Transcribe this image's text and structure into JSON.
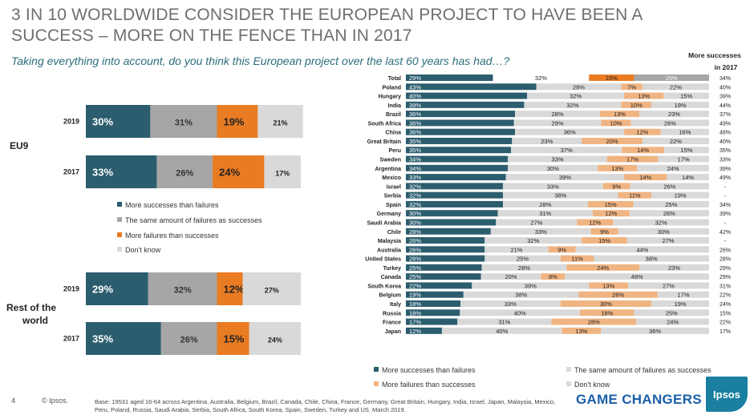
{
  "title": "3 IN 10 WORLDWIDE CONSIDER THE EUROPEAN PROJECT TO HAVE BEEN A SUCCESS – MORE ON THE FENCE THAN IN 2017",
  "subtitle": "Taking everything into account, do you think this European project over the last 60 years has had…?",
  "colors": {
    "success": "#2b5d6e",
    "same": "#a6a6a6",
    "failure": "#e97b22",
    "dont_know": "#d9d9d9",
    "failure_light": "#f0b482",
    "title": "#6e6e6e",
    "subtitle": "#2b6d7c"
  },
  "left_legend": [
    "More successes than failures",
    "The same amount of failures as successes",
    "More failures than successes",
    "Don't know"
  ],
  "bottom_legend": [
    "More successes than failures",
    "The same amount of failures as successes",
    "More failures than successes",
    "Don't know"
  ],
  "right_header": "More successes in 2017",
  "footer": {
    "page": "4",
    "copyright": "© Ipsos.",
    "base": "Base: 19531 aged 16-64 across Argentina, Australia, Belgium, Brazil, Canada, Chile, China, France, Germany, Great Britain, Hungary, India, Israel, Japan, Malaysia, Mexico, Peru, Poland, Russia, Saudi Arabia, Serbia, South Africa, South Korea, Spain, Sweden, Turkey and US. March 2019.",
    "brand": "GAME CHANGERS",
    "logo": "Ipsos"
  },
  "chart_data": [
    {
      "type": "bar",
      "stacked": true,
      "orientation": "horizontal",
      "groups": [
        {
          "label": "EU9",
          "rows": [
            {
              "year": "2019",
              "values": [
                30,
                31,
                19,
                21
              ]
            },
            {
              "year": "2017",
              "values": [
                33,
                26,
                24,
                17
              ]
            }
          ]
        },
        {
          "label": "Rest of the world",
          "rows": [
            {
              "year": "2019",
              "values": [
                29,
                32,
                12,
                27
              ]
            },
            {
              "year": "2017",
              "values": [
                35,
                26,
                15,
                24
              ]
            }
          ]
        }
      ],
      "series": [
        "More successes than failures",
        "The same amount of failures as successes",
        "More failures than successes",
        "Don't know"
      ]
    },
    {
      "type": "bar",
      "stacked": true,
      "orientation": "horizontal",
      "series": [
        "More successes than failures",
        "The same amount of failures as successes",
        "More failures than successes",
        "Don't know"
      ],
      "rows": [
        {
          "country": "Total",
          "values": [
            29,
            32,
            15,
            25
          ],
          "y2017": "34%"
        },
        {
          "country": "Poland",
          "values": [
            43,
            28,
            7,
            22
          ],
          "y2017": "40%"
        },
        {
          "country": "Hungary",
          "values": [
            40,
            32,
            13,
            15
          ],
          "y2017": "39%"
        },
        {
          "country": "India",
          "values": [
            39,
            32,
            10,
            19
          ],
          "y2017": "44%"
        },
        {
          "country": "Brazil",
          "values": [
            36,
            28,
            13,
            23
          ],
          "y2017": "37%"
        },
        {
          "country": "South Africa",
          "values": [
            36,
            29,
            10,
            26
          ],
          "y2017": "49%"
        },
        {
          "country": "China",
          "values": [
            36,
            36,
            12,
            16
          ],
          "y2017": "48%"
        },
        {
          "country": "Great Britain",
          "values": [
            35,
            23,
            20,
            22
          ],
          "y2017": "40%"
        },
        {
          "country": "Peru",
          "values": [
            35,
            37,
            14,
            15
          ],
          "y2017": "35%"
        },
        {
          "country": "Sweden",
          "values": [
            34,
            33,
            17,
            17
          ],
          "y2017": "33%"
        },
        {
          "country": "Argentina",
          "values": [
            34,
            30,
            13,
            24
          ],
          "y2017": "39%"
        },
        {
          "country": "Mexico",
          "values": [
            33,
            39,
            14,
            14
          ],
          "y2017": "49%"
        },
        {
          "country": "Israel",
          "values": [
            32,
            33,
            9,
            26
          ],
          "y2017": "-"
        },
        {
          "country": "Serbia",
          "values": [
            32,
            38,
            11,
            19
          ],
          "y2017": "-"
        },
        {
          "country": "Spain",
          "values": [
            32,
            28,
            15,
            25
          ],
          "y2017": "34%"
        },
        {
          "country": "Germany",
          "values": [
            30,
            31,
            12,
            26
          ],
          "y2017": "39%"
        },
        {
          "country": "Saudi Arabia",
          "values": [
            30,
            27,
            12,
            32
          ],
          "y2017": "-"
        },
        {
          "country": "Chile",
          "values": [
            28,
            33,
            9,
            30
          ],
          "y2017": "42%"
        },
        {
          "country": "Malaysia",
          "values": [
            26,
            32,
            15,
            27
          ],
          "y2017": "-"
        },
        {
          "country": "Australia",
          "values": [
            26,
            21,
            9,
            44
          ],
          "y2017": "26%"
        },
        {
          "country": "United States",
          "values": [
            26,
            25,
            11,
            38
          ],
          "y2017": "28%"
        },
        {
          "country": "Turkey",
          "values": [
            25,
            28,
            24,
            23
          ],
          "y2017": "29%"
        },
        {
          "country": "Canada",
          "values": [
            25,
            20,
            8,
            48
          ],
          "y2017": "29%"
        },
        {
          "country": "South Korea",
          "values": [
            22,
            39,
            13,
            27
          ],
          "y2017": "31%"
        },
        {
          "country": "Belgium",
          "values": [
            19,
            38,
            26,
            17
          ],
          "y2017": "22%"
        },
        {
          "country": "Italy",
          "values": [
            18,
            33,
            30,
            19
          ],
          "y2017": "24%"
        },
        {
          "country": "Russia",
          "values": [
            18,
            40,
            18,
            25
          ],
          "y2017": "15%"
        },
        {
          "country": "France",
          "values": [
            17,
            31,
            28,
            24
          ],
          "y2017": "22%"
        },
        {
          "country": "Japan",
          "values": [
            12,
            40,
            13,
            36
          ],
          "y2017": "17%"
        }
      ]
    }
  ]
}
